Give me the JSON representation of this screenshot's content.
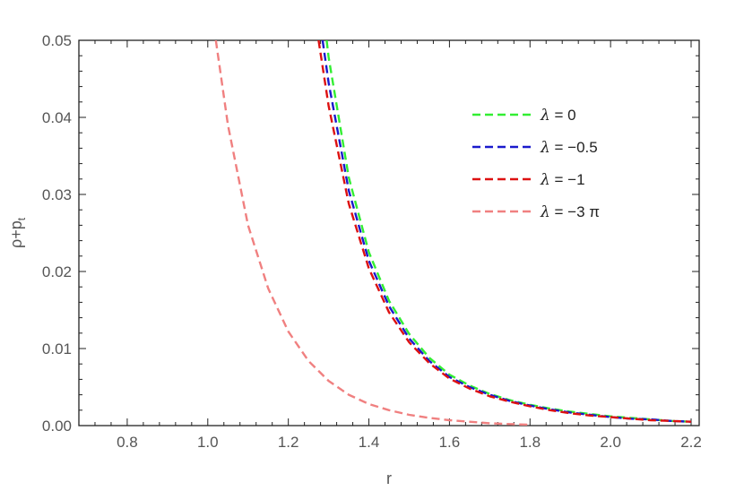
{
  "chart_data": {
    "type": "line",
    "title": "",
    "xlabel": "r",
    "ylabel": "ρ+p_t",
    "ylabel_main": "ρ+p",
    "ylabel_sub": "t",
    "xlim": [
      0.68,
      2.22
    ],
    "ylim": [
      0,
      0.05
    ],
    "xticks": [
      0.8,
      1.0,
      1.2,
      1.4,
      1.6,
      1.8,
      2.0,
      2.2
    ],
    "xtick_labels": [
      "0.8",
      "1.0",
      "1.2",
      "1.4",
      "1.6",
      "1.8",
      "2.0",
      "2.2"
    ],
    "yticks": [
      0,
      0.01,
      0.02,
      0.03,
      0.04,
      0.05
    ],
    "ytick_labels": [
      "0.00",
      "0.01",
      "0.02",
      "0.03",
      "0.04",
      "0.05"
    ],
    "grid": false,
    "legend_position": "upper-right",
    "series": [
      {
        "name": "λ = 0",
        "legend_symbol": "λ",
        "legend_value": " = 0",
        "color": "#33ee33",
        "style": "dashed",
        "x": [
          1.295,
          1.3,
          1.35,
          1.4,
          1.45,
          1.5,
          1.55,
          1.6,
          1.65,
          1.7,
          1.75,
          1.8,
          1.85,
          1.9,
          1.95,
          2.0,
          2.05,
          2.1,
          2.15,
          2.2
        ],
        "y": [
          0.05,
          0.0478,
          0.0322,
          0.0225,
          0.0162,
          0.0119,
          0.0088,
          0.0066,
          0.0052,
          0.0041,
          0.0033,
          0.0027,
          0.0022,
          0.0018,
          0.0015,
          0.0012,
          0.001,
          0.0008,
          0.0006,
          0.0005
        ]
      },
      {
        "name": "λ = -0.5",
        "legend_symbol": "λ",
        "legend_value": " = −0.5",
        "color": "#1a1acc",
        "style": "dashed",
        "x": [
          1.285,
          1.3,
          1.35,
          1.4,
          1.45,
          1.5,
          1.55,
          1.6,
          1.65,
          1.7,
          1.75,
          1.8,
          1.85,
          1.9,
          1.95,
          2.0,
          2.05,
          2.1,
          2.15,
          2.2
        ],
        "y": [
          0.05,
          0.0445,
          0.0305,
          0.0214,
          0.0155,
          0.0113,
          0.0084,
          0.0063,
          0.005,
          0.004,
          0.0032,
          0.0026,
          0.0021,
          0.0017,
          0.0014,
          0.0011,
          0.0009,
          0.0008,
          0.0006,
          0.0005
        ]
      },
      {
        "name": "λ = -1",
        "legend_symbol": "λ",
        "legend_value": " = −1",
        "color": "#dd1111",
        "style": "dashed",
        "x": [
          1.275,
          1.3,
          1.35,
          1.4,
          1.45,
          1.5,
          1.55,
          1.6,
          1.65,
          1.7,
          1.75,
          1.8,
          1.85,
          1.9,
          1.95,
          2.0,
          2.05,
          2.1,
          2.15,
          2.2
        ],
        "y": [
          0.05,
          0.0415,
          0.0288,
          0.0204,
          0.0147,
          0.0108,
          0.0081,
          0.0061,
          0.0048,
          0.0038,
          0.0031,
          0.0025,
          0.002,
          0.0016,
          0.0013,
          0.0011,
          0.0009,
          0.0007,
          0.0006,
          0.0005
        ]
      },
      {
        "name": "λ = -3π",
        "legend_symbol": "λ",
        "legend_value": " = −3 π",
        "color": "#f08080",
        "style": "dashed",
        "x": [
          1.02,
          1.05,
          1.1,
          1.15,
          1.2,
          1.25,
          1.3,
          1.35,
          1.4,
          1.45,
          1.5,
          1.55,
          1.6,
          1.65,
          1.7,
          1.75,
          1.8
        ],
        "y": [
          0.05,
          0.039,
          0.026,
          0.0178,
          0.0122,
          0.0084,
          0.0058,
          0.004,
          0.0028,
          0.002,
          0.0014,
          0.001,
          0.0007,
          0.0005,
          0.0003,
          0.0002,
          0.0001
        ]
      }
    ]
  }
}
